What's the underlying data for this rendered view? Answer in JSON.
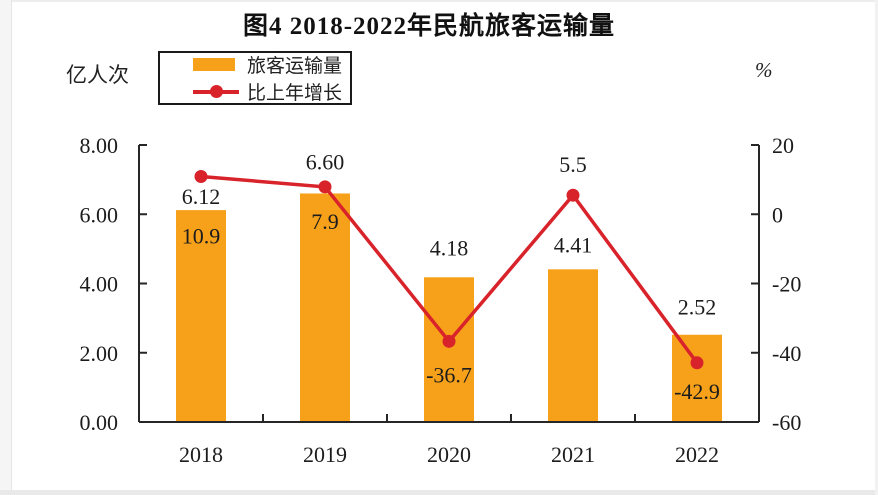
{
  "page": {
    "bottom_band": ""
  },
  "chart_data": {
    "type": "bar+line",
    "title": "图4  2018-2022年民航旅客运输量",
    "categories": [
      "2018",
      "2019",
      "2020",
      "2021",
      "2022"
    ],
    "series": [
      {
        "name": "旅客运输量",
        "type": "bar",
        "axis": "left",
        "unit": "亿人次",
        "color": "#F7A11A",
        "values": [
          6.12,
          6.6,
          4.18,
          4.41,
          2.52
        ],
        "labels": [
          "6.12",
          "6.60",
          "4.18",
          "4.41",
          "2.52"
        ]
      },
      {
        "name": "比上年增长",
        "type": "line",
        "axis": "right",
        "unit": "%",
        "color": "#D9232B",
        "values": [
          10.9,
          7.9,
          -36.7,
          5.5,
          -42.9
        ],
        "labels": [
          "10.9",
          "7.9",
          "-36.7",
          "5.5",
          "-42.9"
        ]
      }
    ],
    "left_axis": {
      "unit": "亿人次",
      "min": 0,
      "max": 8,
      "tick_values": [
        8,
        6,
        4,
        2,
        0
      ],
      "ticks": [
        "8.00",
        "6.00",
        "4.00",
        "2.00",
        "0.00"
      ]
    },
    "right_axis": {
      "unit": "%",
      "min": -60,
      "max": 20,
      "tick_values": [
        20,
        0,
        -20,
        -40,
        -60
      ],
      "ticks": [
        "20",
        "0",
        "-20",
        "-40",
        "-60"
      ]
    },
    "legend_position": "top-left",
    "grid": false
  }
}
